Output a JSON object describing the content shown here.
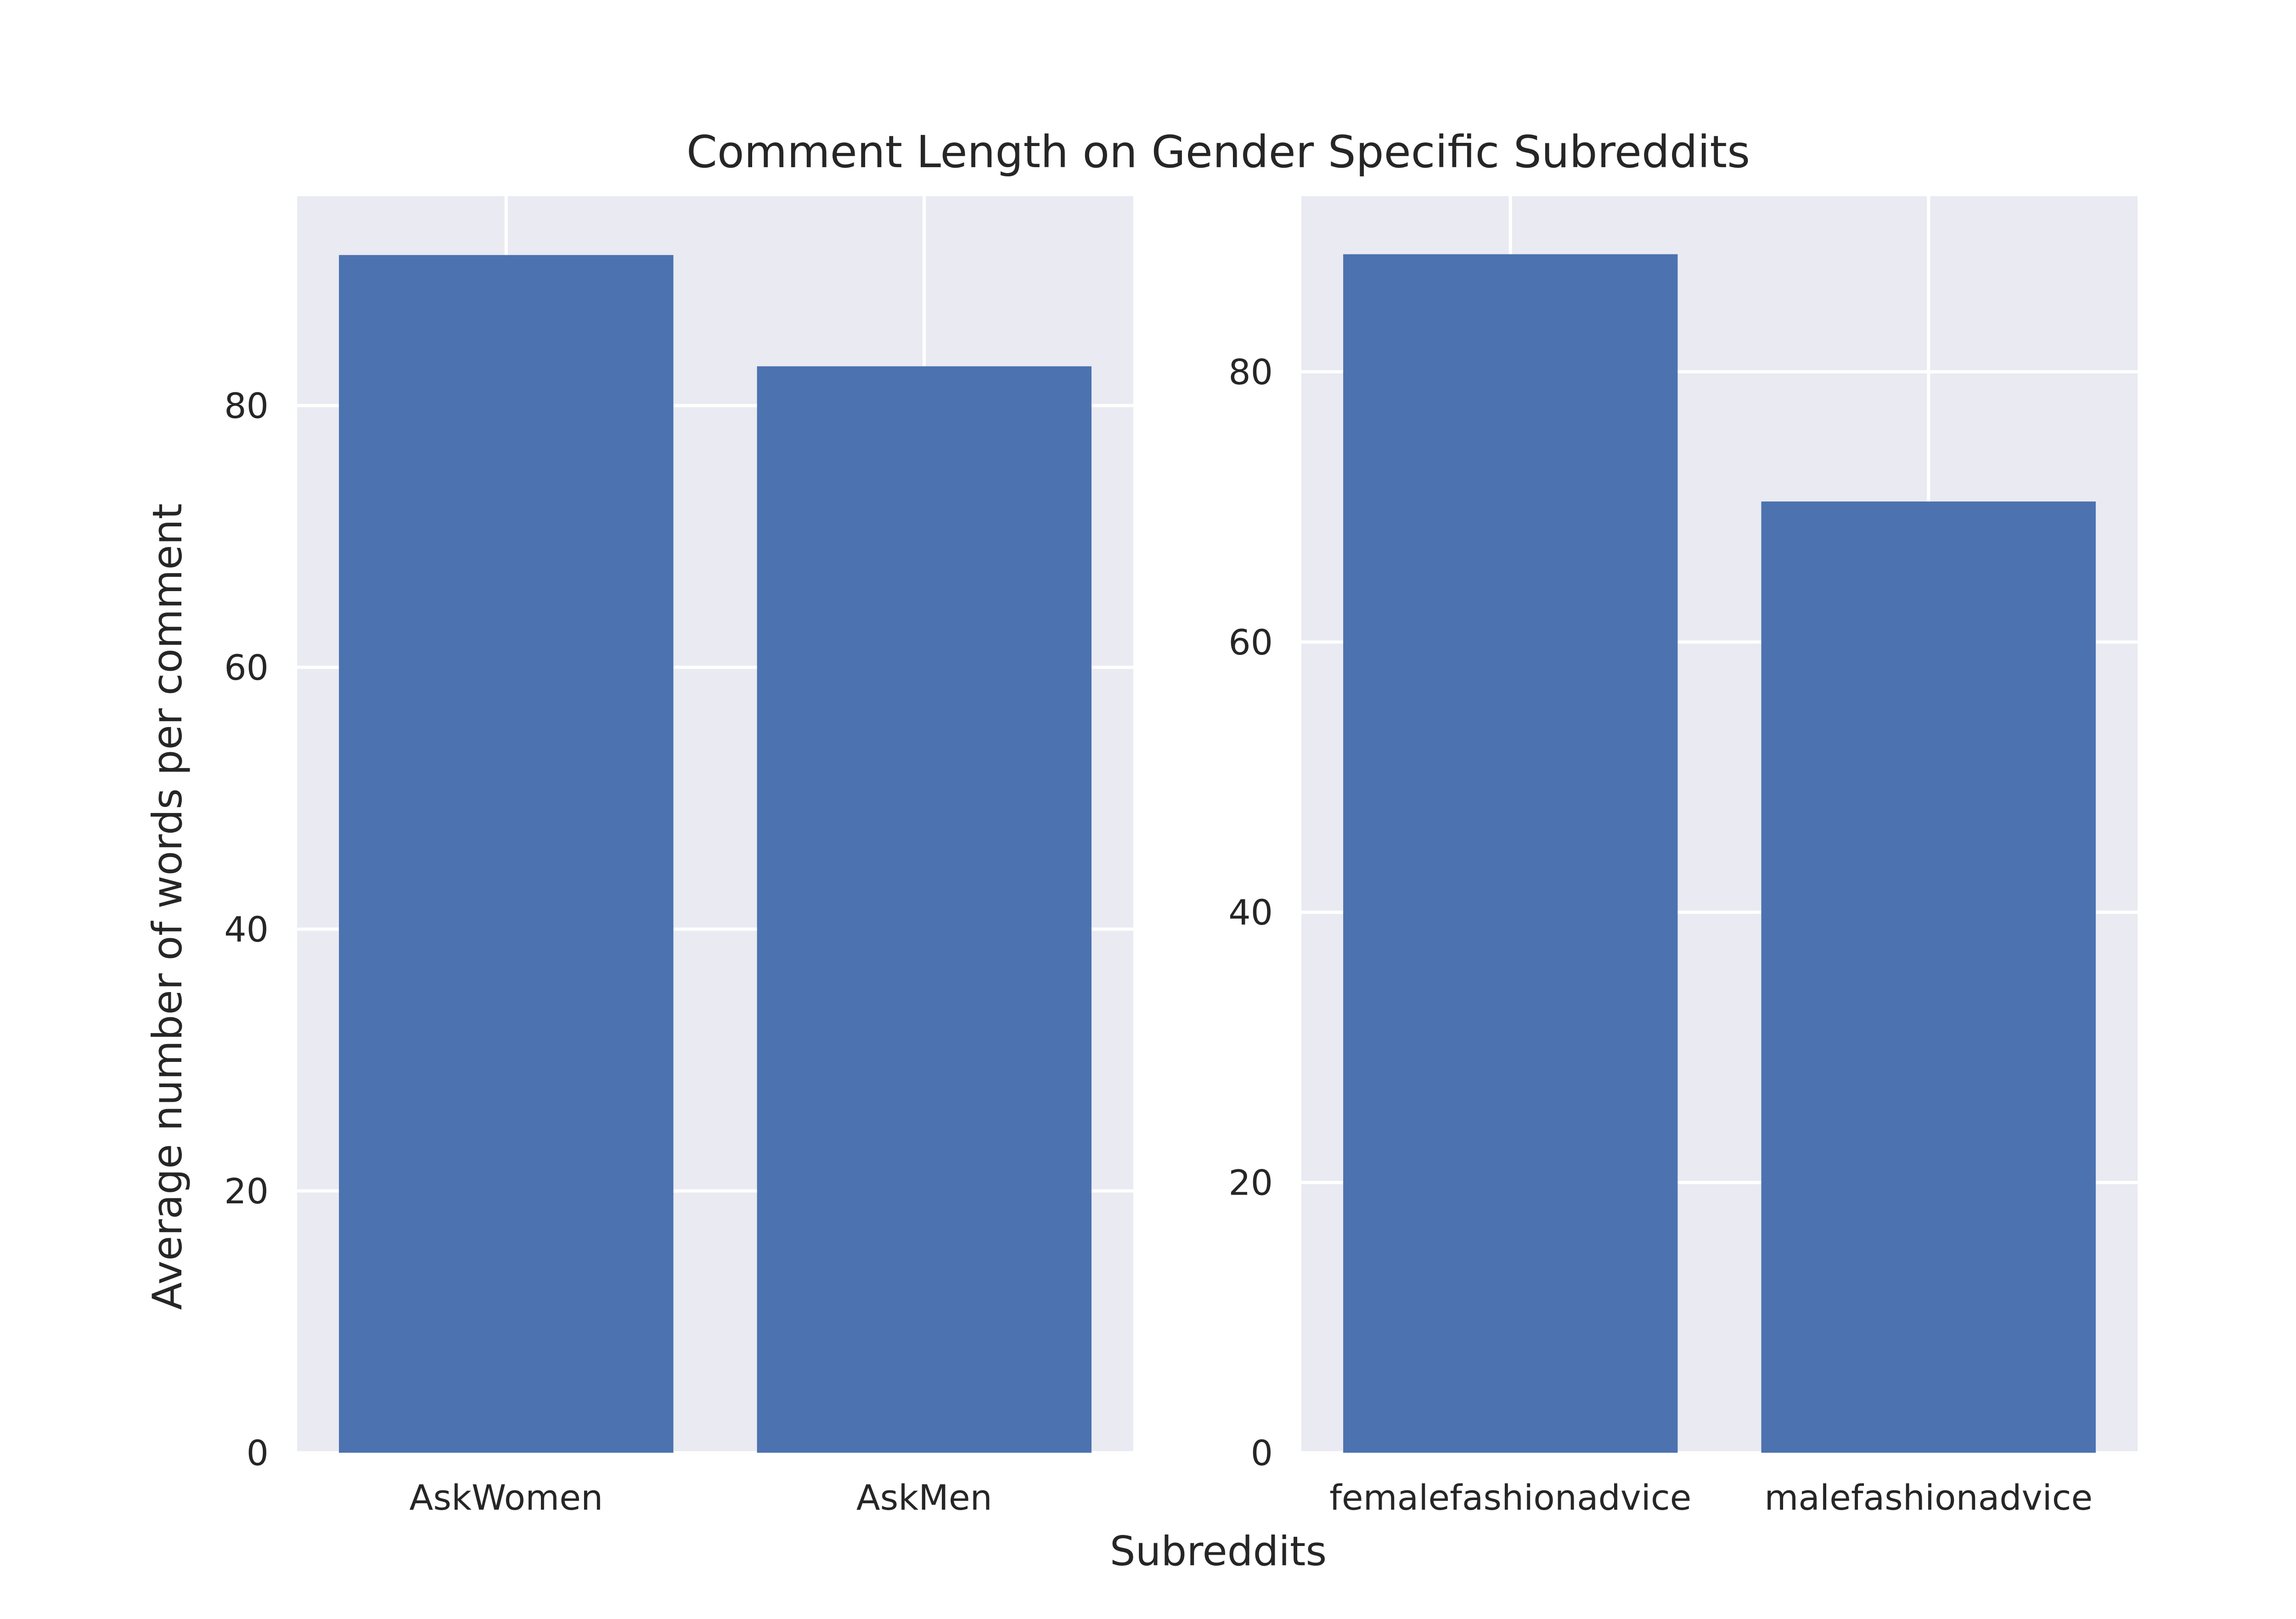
{
  "chart_data": {
    "type": "bar",
    "title": "Comment Length on Gender Specific Subreddits",
    "xlabel": "Subreddits",
    "ylabel": "Average number of words per comment",
    "grid": true,
    "bar_color": "#4c72b0",
    "background_color": "#eaeaf2",
    "grid_color": "#ffffff",
    "panels": [
      {
        "categories": [
          "AskWomen",
          "AskMen"
        ],
        "values": [
          91.5,
          83.0
        ],
        "ylim": [
          0,
          96
        ],
        "yticks": [
          0,
          20,
          40,
          60,
          80
        ]
      },
      {
        "categories": [
          "femalefashionadvice",
          "malefashionadvice"
        ],
        "values": [
          88.7,
          70.4
        ],
        "ylim": [
          0,
          93
        ],
        "yticks": [
          0,
          20,
          40,
          60,
          80
        ]
      }
    ]
  }
}
